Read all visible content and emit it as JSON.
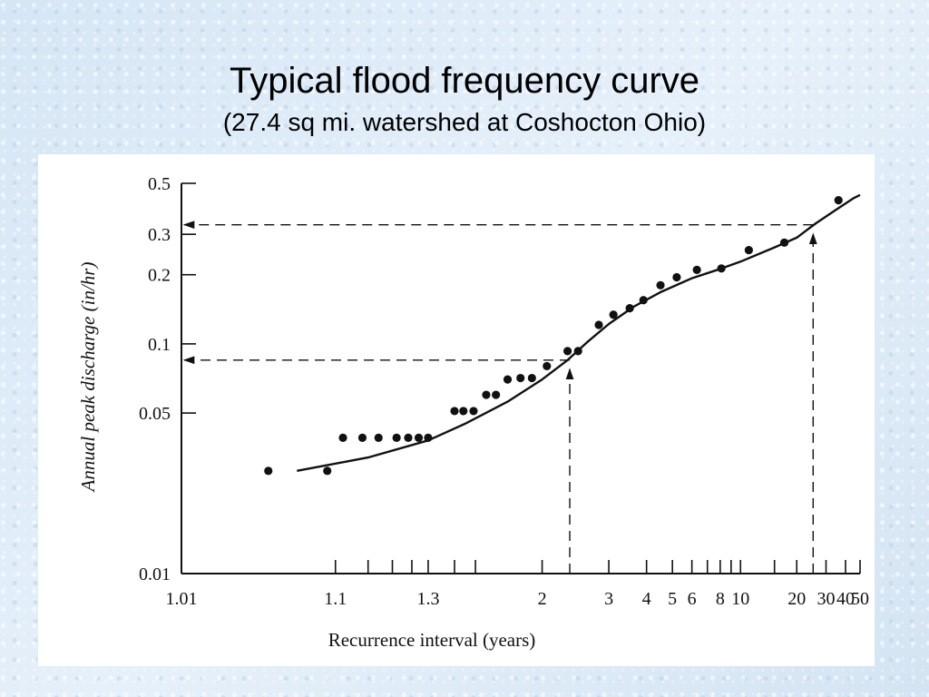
{
  "slide": {
    "title": "Typical flood frequency curve",
    "subtitle": "(27.4 sq mi. watershed at Coshocton Ohio)"
  },
  "chart_data": {
    "type": "scatter",
    "title": "",
    "xlabel": "Recurrence interval (years)",
    "ylabel": "Annual peak discharge (in/hr)",
    "x_scale": "probability",
    "y_scale": "log",
    "xlim": [
      1.01,
      50
    ],
    "ylim": [
      0.01,
      0.5
    ],
    "x_ticks": [
      "1.01",
      "1.1",
      "1.3",
      "2",
      "3",
      "4",
      "5",
      "6",
      "8",
      "10",
      "20",
      "30",
      "40",
      "50"
    ],
    "x_tick_values": [
      1.01,
      1.1,
      1.3,
      2,
      3,
      4,
      5,
      6,
      8,
      10,
      20,
      30,
      40,
      50
    ],
    "x_minor_ticks": [
      1.15,
      1.2,
      1.25,
      1.4,
      1.5,
      7,
      9,
      15
    ],
    "y_ticks": [
      "0.5",
      "0.3",
      "0.2",
      "0.1",
      "0.05",
      "0.01"
    ],
    "y_tick_values": [
      0.5,
      0.3,
      0.2,
      0.1,
      0.05,
      0.01
    ],
    "grid": false,
    "series": [
      {
        "type": "scatter",
        "points": [
          [
            1.04,
            0.028
          ],
          [
            1.09,
            0.028
          ],
          [
            1.11,
            0.039
          ],
          [
            1.14,
            0.039
          ],
          [
            1.17,
            0.039
          ],
          [
            1.21,
            0.039
          ],
          [
            1.24,
            0.039
          ],
          [
            1.27,
            0.039
          ],
          [
            1.3,
            0.039
          ],
          [
            1.4,
            0.051
          ],
          [
            1.44,
            0.051
          ],
          [
            1.49,
            0.051
          ],
          [
            1.56,
            0.06
          ],
          [
            1.62,
            0.06
          ],
          [
            1.7,
            0.07
          ],
          [
            1.8,
            0.071
          ],
          [
            1.9,
            0.071
          ],
          [
            2.05,
            0.08
          ],
          [
            2.3,
            0.093
          ],
          [
            2.45,
            0.093
          ],
          [
            2.8,
            0.121
          ],
          [
            3.1,
            0.134
          ],
          [
            3.5,
            0.143
          ],
          [
            3.9,
            0.155
          ],
          [
            4.5,
            0.18
          ],
          [
            5.2,
            0.195
          ],
          [
            6.3,
            0.21
          ],
          [
            8.1,
            0.213
          ],
          [
            11.0,
            0.256
          ],
          [
            17.0,
            0.276
          ],
          [
            36.0,
            0.422
          ]
        ]
      },
      {
        "type": "line",
        "points": [
          [
            1.06,
            0.028
          ],
          [
            1.15,
            0.032
          ],
          [
            1.3,
            0.038
          ],
          [
            1.45,
            0.045
          ],
          [
            1.7,
            0.056
          ],
          [
            2.0,
            0.07
          ],
          [
            2.3,
            0.085
          ],
          [
            2.6,
            0.102
          ],
          [
            3.0,
            0.122
          ],
          [
            3.6,
            0.145
          ],
          [
            4.5,
            0.168
          ],
          [
            6.0,
            0.193
          ],
          [
            8.0,
            0.212
          ],
          [
            10.0,
            0.228
          ],
          [
            15.0,
            0.263
          ],
          [
            20.0,
            0.29
          ],
          [
            26.0,
            0.335
          ],
          [
            35.0,
            0.385
          ],
          [
            45.0,
            0.43
          ],
          [
            50.0,
            0.445
          ]
        ]
      }
    ],
    "annotations": [
      {
        "type": "reading-arrow",
        "x": 2.33,
        "y": 0.085
      },
      {
        "type": "reading-arrow",
        "x": 25.0,
        "y": 0.33
      }
    ]
  }
}
